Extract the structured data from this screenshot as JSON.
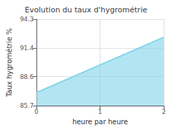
{
  "chart_data": {
    "type": "area",
    "title": "Evolution du taux d'hygrométrie",
    "xlabel": "heure par heure",
    "ylabel": "Taux hygrométrie %",
    "x": [
      0,
      2
    ],
    "values": [
      87.0,
      92.5
    ],
    "color": "#7fd4e8",
    "xlim": [
      0,
      2
    ],
    "ylim": [
      85.7,
      94.3
    ],
    "xticks": [
      0,
      1,
      2
    ],
    "yticks": [
      85.7,
      88.6,
      91.4,
      94.3
    ],
    "grid": true
  }
}
